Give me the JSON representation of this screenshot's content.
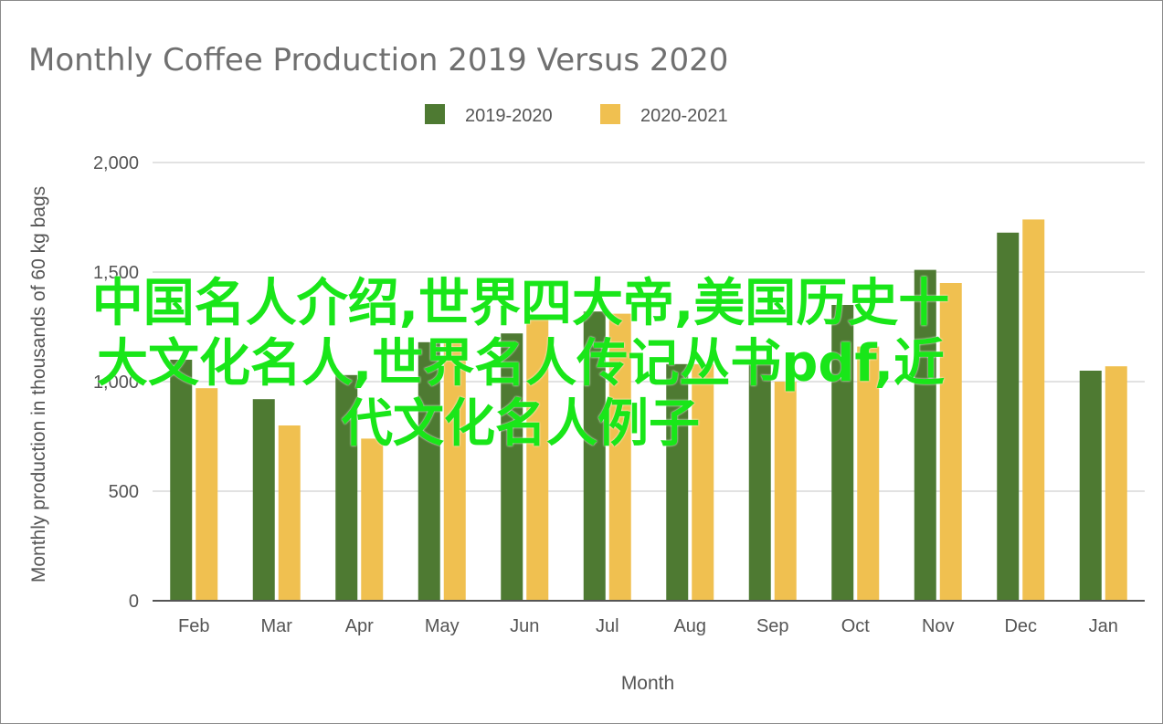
{
  "chart_data": {
    "type": "bar",
    "title": "Monthly Coffee Production 2019 Versus 2020",
    "xlabel": "Month",
    "ylabel": "Monthly production in thousands of 60 kg bags",
    "ylim": [
      0,
      2000
    ],
    "yticks": [
      0,
      500,
      1000,
      1500,
      2000
    ],
    "ytick_labels": [
      "0",
      "500",
      "1,000",
      "1,500",
      "2,000"
    ],
    "grid": true,
    "legend_position": "top-center",
    "categories": [
      "Feb",
      "Mar",
      "Apr",
      "May",
      "Jun",
      "Jul",
      "Aug",
      "Sep",
      "Oct",
      "Nov",
      "Dec",
      "Jan"
    ],
    "series": [
      {
        "name": "2019-2020",
        "color": "#4e7a32",
        "values": [
          1100,
          920,
          1030,
          1180,
          1220,
          1320,
          1080,
          1080,
          1350,
          1510,
          1680,
          1050
        ]
      },
      {
        "name": "2020-2021",
        "color": "#f0c050",
        "values": [
          970,
          800,
          740,
          1190,
          1300,
          1310,
          1080,
          1000,
          1160,
          1450,
          1740,
          1070
        ]
      }
    ]
  },
  "overlay": {
    "line1": "中国名人介绍,世界四大帝,美国历史十",
    "line2": "大文化名人,世界名人传记丛书pdf,近",
    "line3": "代文化名人例子",
    "color": "#19e619"
  }
}
